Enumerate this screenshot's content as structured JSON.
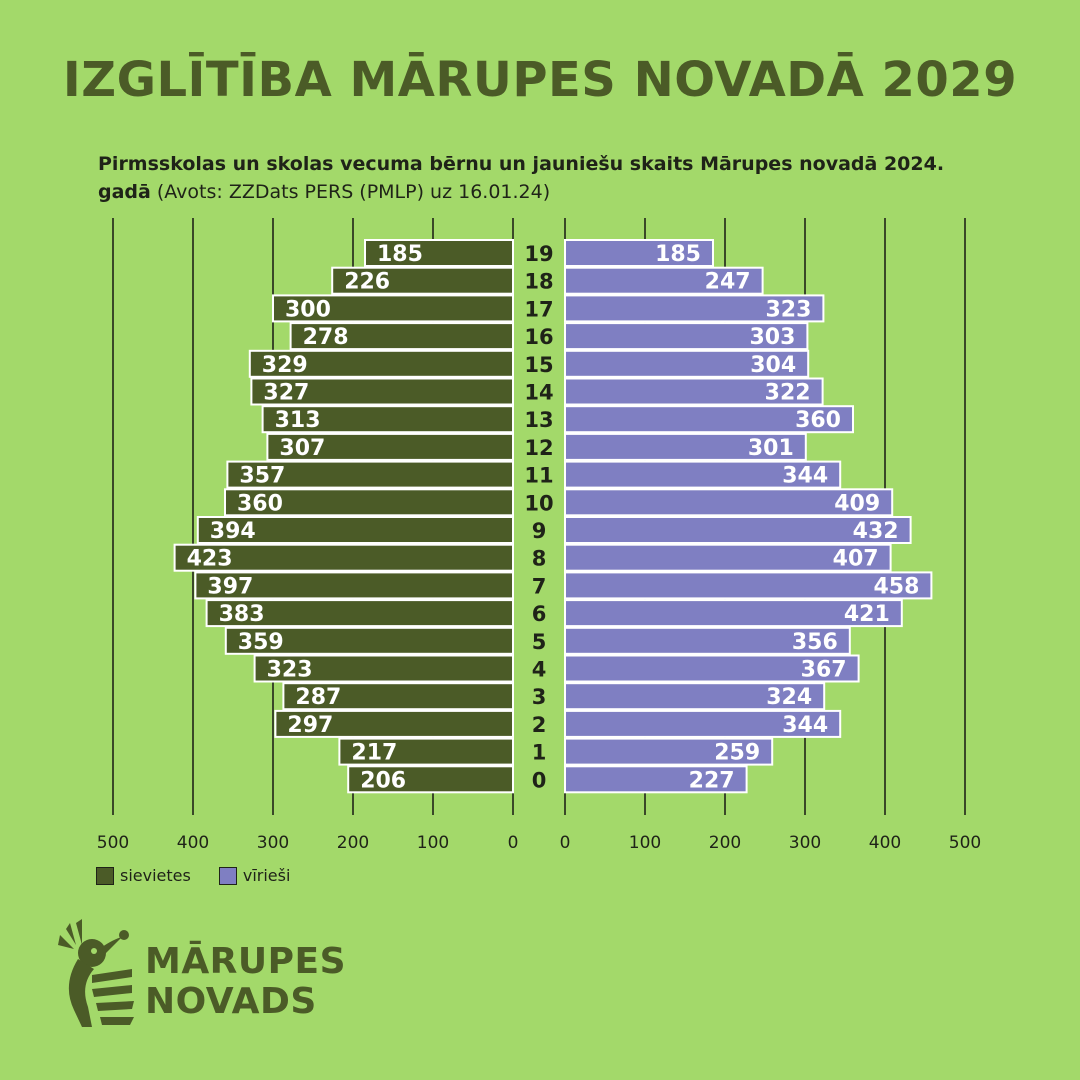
{
  "title": "IZGLĪTĪBA MĀRUPES NOVADĀ 2029",
  "subtitle": {
    "bold": "Pirmsskolas un skolas vecuma bērnu un jauniešu skaits Mārupes novadā 2024. gadā",
    "normal": " (Avots: ZZDats PERS (PMLP) uz 16.01.24)"
  },
  "colors": {
    "background": "#a3d96a",
    "female": "#4b5b27",
    "male": "#7f7fc2",
    "grid": "#1f2318"
  },
  "chart_data": {
    "type": "bar",
    "orientation": "horizontal-population-pyramid",
    "categories": [
      "19",
      "18",
      "17",
      "16",
      "15",
      "14",
      "13",
      "12",
      "11",
      "10",
      "9",
      "8",
      "7",
      "6",
      "5",
      "4",
      "3",
      "2",
      "1",
      "0"
    ],
    "series": [
      {
        "name": "sievietes",
        "values": [
          185,
          226,
          300,
          278,
          329,
          327,
          313,
          307,
          357,
          360,
          394,
          423,
          397,
          383,
          359,
          323,
          287,
          297,
          217,
          206
        ]
      },
      {
        "name": "vīrieši",
        "values": [
          185,
          247,
          323,
          303,
          304,
          322,
          360,
          301,
          344,
          409,
          432,
          407,
          458,
          421,
          356,
          367,
          324,
          344,
          259,
          227
        ]
      }
    ],
    "xlim": [
      0,
      500
    ],
    "ticks": [
      "0",
      "100",
      "200",
      "300",
      "400",
      "500"
    ],
    "grid": true,
    "legend": "bottom-left"
  },
  "legend": {
    "female_label": "sievietes",
    "male_label": "vīrieši"
  },
  "logo": {
    "line1": "MĀRUPES",
    "line2": "NOVADS",
    "icon": "hoopoe-bird-icon"
  }
}
